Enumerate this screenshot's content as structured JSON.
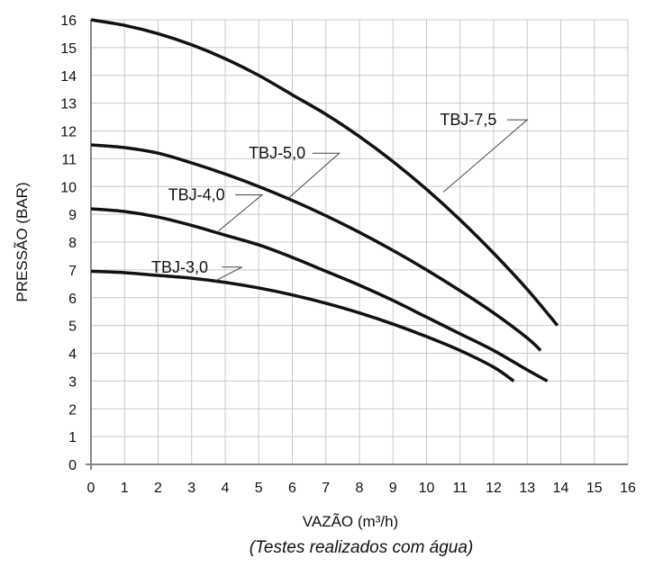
{
  "chart_data": {
    "type": "line",
    "xlabel": "VAZÃO (m³/h)",
    "ylabel": "PRESSÃO  (BAR)",
    "note": "(Testes realizados com água)",
    "xlim": [
      0,
      16
    ],
    "ylim": [
      0,
      16
    ],
    "xticks": [
      0,
      1,
      2,
      3,
      4,
      5,
      6,
      7,
      8,
      9,
      10,
      11,
      12,
      13,
      14,
      15,
      16
    ],
    "yticks": [
      0,
      1,
      2,
      3,
      4,
      5,
      6,
      7,
      8,
      9,
      10,
      11,
      12,
      13,
      14,
      15,
      16
    ],
    "grid": true,
    "series": [
      {
        "name": "TBJ-7,5",
        "x": [
          0,
          1,
          2,
          3,
          4,
          5,
          6,
          7,
          8,
          9,
          10,
          11,
          12,
          13,
          13.9
        ],
        "y": [
          16,
          15.8,
          15.5,
          15.1,
          14.6,
          14.0,
          13.3,
          12.6,
          11.8,
          10.9,
          9.9,
          8.8,
          7.6,
          6.3,
          5.0
        ]
      },
      {
        "name": "TBJ-5,0",
        "x": [
          0,
          1,
          2,
          3,
          4,
          5,
          6,
          7,
          8,
          9,
          10,
          11,
          12,
          13,
          13.4
        ],
        "y": [
          11.5,
          11.4,
          11.2,
          10.85,
          10.45,
          10.0,
          9.5,
          8.95,
          8.35,
          7.7,
          7.0,
          6.25,
          5.45,
          4.55,
          4.1
        ]
      },
      {
        "name": "TBJ-4,0",
        "x": [
          0,
          1,
          2,
          3,
          4,
          5,
          6,
          7,
          8,
          9,
          10,
          11,
          12,
          13,
          13.6
        ],
        "y": [
          9.2,
          9.1,
          8.9,
          8.6,
          8.25,
          7.9,
          7.45,
          6.95,
          6.45,
          5.9,
          5.3,
          4.7,
          4.1,
          3.4,
          3.0
        ]
      },
      {
        "name": "TBJ-3,0",
        "x": [
          0,
          1,
          2,
          3,
          4,
          5,
          6,
          7,
          8,
          9,
          10,
          11,
          12,
          12.6
        ],
        "y": [
          6.95,
          6.9,
          6.8,
          6.7,
          6.55,
          6.35,
          6.1,
          5.8,
          5.45,
          5.05,
          4.6,
          4.1,
          3.5,
          3.0
        ]
      }
    ],
    "annotations": [
      {
        "series": "TBJ-7,5",
        "text": "TBJ-7,5",
        "label_at": [
          10.4,
          12.4
        ],
        "leader_from": [
          12.4,
          12.4
        ],
        "leader_knee": [
          13.0,
          12.4
        ],
        "leader_to": [
          10.5,
          9.8
        ]
      },
      {
        "series": "TBJ-5,0",
        "text": "TBJ-5,0",
        "label_at": [
          4.7,
          11.2
        ],
        "leader_from": [
          6.6,
          11.2
        ],
        "leader_knee": [
          7.4,
          11.2
        ],
        "leader_to": [
          5.9,
          9.6
        ]
      },
      {
        "series": "TBJ-4,0",
        "text": "TBJ-4,0",
        "label_at": [
          2.3,
          9.7
        ],
        "leader_from": [
          4.3,
          9.7
        ],
        "leader_knee": [
          5.1,
          9.7
        ],
        "leader_to": [
          3.8,
          8.4
        ]
      },
      {
        "series": "TBJ-3,0",
        "text": "TBJ-3,0",
        "label_at": [
          1.8,
          7.1
        ],
        "leader_from": [
          3.9,
          7.1
        ],
        "leader_knee": [
          4.5,
          7.1
        ],
        "leader_to": [
          3.7,
          6.6
        ]
      }
    ]
  }
}
